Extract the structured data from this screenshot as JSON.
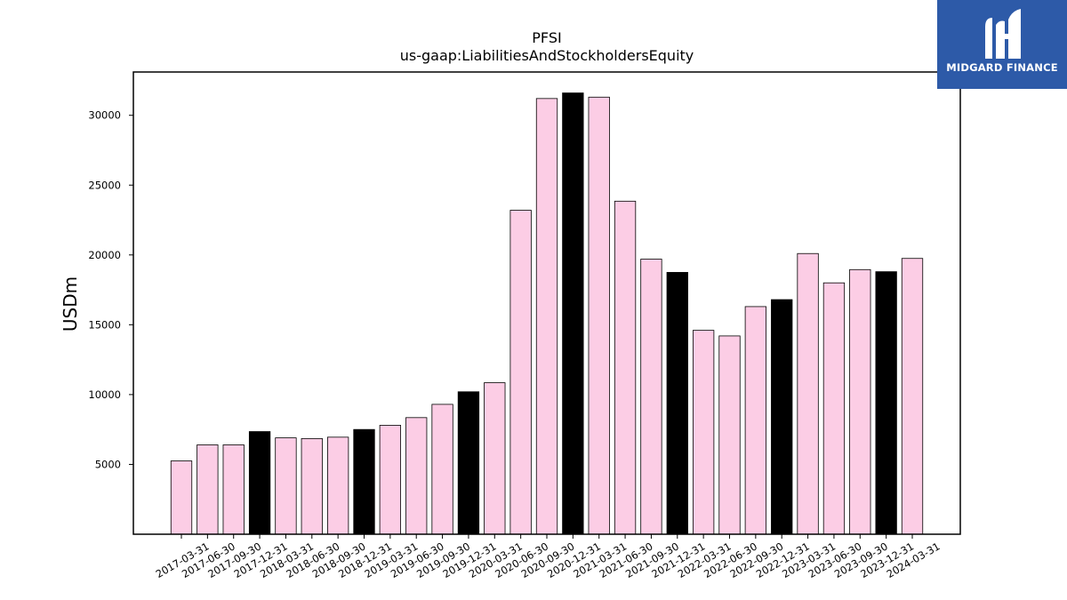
{
  "chart_data": {
    "type": "bar",
    "title": "PFSI",
    "subtitle": "us-gaap:LiabilitiesAndStockholdersEquity",
    "xlabel": "",
    "ylabel": "USDm",
    "ylim": [
      0,
      33100
    ],
    "yticks": [
      5000,
      10000,
      15000,
      20000,
      25000,
      30000
    ],
    "grid": false,
    "categories": [
      "2017-03-31",
      "2017-06-30",
      "2017-09-30",
      "2017-12-31",
      "2018-03-31",
      "2018-06-30",
      "2018-09-30",
      "2018-12-31",
      "2019-03-31",
      "2019-06-30",
      "2019-09-30",
      "2019-12-31",
      "2020-03-31",
      "2020-06-30",
      "2020-09-30",
      "2020-12-31",
      "2021-03-31",
      "2021-06-30",
      "2021-09-30",
      "2021-12-31",
      "2022-03-31",
      "2022-06-30",
      "2022-09-30",
      "2022-12-31",
      "2023-03-31",
      "2023-06-30",
      "2023-09-30",
      "2023-12-31",
      "2024-03-31"
    ],
    "values": [
      5250,
      6400,
      6400,
      7350,
      6900,
      6850,
      6950,
      7500,
      7800,
      8350,
      9300,
      10200,
      10850,
      23200,
      31200,
      31600,
      31300,
      23850,
      19700,
      18750,
      14600,
      14200,
      16300,
      16800,
      20100,
      18000,
      18950,
      18800,
      19750
    ],
    "colors": {
      "quarter": "#fccde5",
      "year_end": "#000000",
      "edge": "#000000"
    },
    "year_end_suffix": "-12-31"
  },
  "logo": {
    "text": "MIDGARD FINANCE"
  }
}
